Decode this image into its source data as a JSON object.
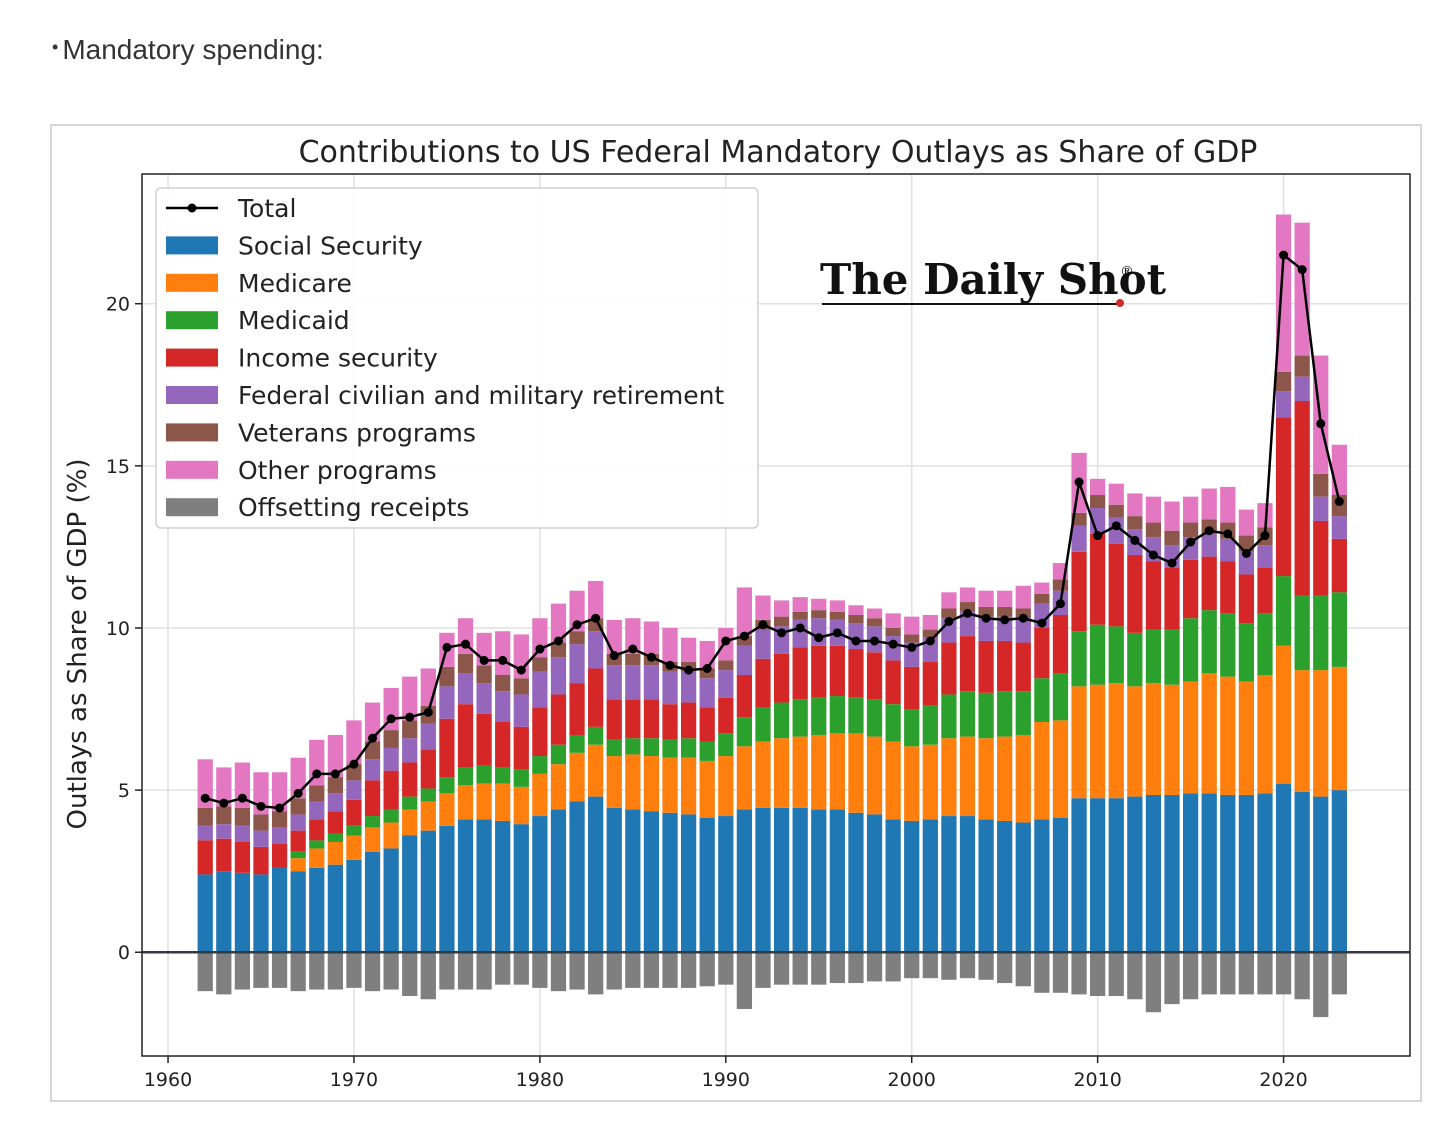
{
  "intro": {
    "bullet": "•",
    "text": "Mandatory spending:"
  },
  "logo": {
    "text": "The Daily Shot",
    "mark": "®"
  },
  "chart_data": {
    "type": "bar",
    "title": "Contributions to US Federal Mandatory Outlays as Share of GDP",
    "xlabel": "",
    "ylabel": "Outlays as Share of GDP (%)",
    "xlim": [
      1958.6,
      2026.8
    ],
    "ylim": [
      -3.2,
      24
    ],
    "xticks": [
      1960,
      1970,
      1980,
      1990,
      2000,
      2010,
      2020
    ],
    "yticks": [
      0,
      5,
      10,
      15,
      20
    ],
    "grid": true,
    "legend_position": "top-left",
    "stacked": true,
    "colors": {
      "Total": "#000000",
      "Social Security": "#1f77b4",
      "Medicare": "#ff7f0e",
      "Medicaid": "#2ca02c",
      "Income security": "#d62728",
      "Federal civilian and military retirement": "#9467bd",
      "Veterans programs": "#8c564b",
      "Other programs": "#e377c2",
      "Offsetting receipts": "#7f7f7f"
    },
    "legend": [
      "Total",
      "Social Security",
      "Medicare",
      "Medicaid",
      "Income security",
      "Federal civilian and military retirement",
      "Veterans programs",
      "Other programs",
      "Offsetting receipts"
    ],
    "years": [
      1962,
      1963,
      1964,
      1965,
      1966,
      1967,
      1968,
      1969,
      1970,
      1971,
      1972,
      1973,
      1974,
      1975,
      1976,
      1977,
      1978,
      1979,
      1980,
      1981,
      1982,
      1983,
      1984,
      1985,
      1986,
      1987,
      1988,
      1989,
      1990,
      1991,
      1992,
      1993,
      1994,
      1995,
      1996,
      1997,
      1998,
      1999,
      2000,
      2001,
      2002,
      2003,
      2004,
      2005,
      2006,
      2007,
      2008,
      2009,
      2010,
      2011,
      2012,
      2013,
      2014,
      2015,
      2016,
      2017,
      2018,
      2019,
      2020,
      2021,
      2022,
      2023
    ],
    "series": [
      {
        "name": "Social Security",
        "values": [
          2.4,
          2.5,
          2.45,
          2.4,
          2.6,
          2.5,
          2.6,
          2.7,
          2.85,
          3.1,
          3.2,
          3.6,
          3.75,
          3.9,
          4.1,
          4.1,
          4.05,
          3.95,
          4.2,
          4.4,
          4.65,
          4.8,
          4.45,
          4.4,
          4.35,
          4.3,
          4.25,
          4.15,
          4.2,
          4.4,
          4.45,
          4.45,
          4.45,
          4.4,
          4.4,
          4.3,
          4.25,
          4.1,
          4.05,
          4.1,
          4.2,
          4.2,
          4.1,
          4.05,
          4.0,
          4.1,
          4.15,
          4.75,
          4.75,
          4.75,
          4.8,
          4.85,
          4.85,
          4.9,
          4.9,
          4.85,
          4.85,
          4.9,
          5.2,
          4.95,
          4.8,
          5.0
        ]
      },
      {
        "name": "Medicare",
        "values": [
          0,
          0,
          0,
          0,
          0,
          0.4,
          0.6,
          0.7,
          0.75,
          0.75,
          0.8,
          0.8,
          0.9,
          1.0,
          1.05,
          1.1,
          1.15,
          1.15,
          1.3,
          1.4,
          1.5,
          1.6,
          1.6,
          1.7,
          1.7,
          1.7,
          1.75,
          1.75,
          1.85,
          1.95,
          2.05,
          2.15,
          2.2,
          2.3,
          2.35,
          2.45,
          2.4,
          2.4,
          2.3,
          2.3,
          2.4,
          2.45,
          2.5,
          2.6,
          2.7,
          3.0,
          3.0,
          3.45,
          3.5,
          3.55,
          3.4,
          3.45,
          3.4,
          3.45,
          3.7,
          3.65,
          3.5,
          3.65,
          4.25,
          3.75,
          3.9,
          3.8
        ]
      },
      {
        "name": "Medicaid",
        "values": [
          0,
          0,
          0,
          0,
          0,
          0.2,
          0.25,
          0.25,
          0.3,
          0.35,
          0.4,
          0.4,
          0.4,
          0.5,
          0.55,
          0.55,
          0.5,
          0.55,
          0.55,
          0.6,
          0.55,
          0.55,
          0.5,
          0.5,
          0.55,
          0.55,
          0.6,
          0.6,
          0.7,
          0.9,
          1.05,
          1.1,
          1.15,
          1.15,
          1.15,
          1.1,
          1.15,
          1.15,
          1.15,
          1.2,
          1.35,
          1.4,
          1.4,
          1.4,
          1.35,
          1.35,
          1.45,
          1.7,
          1.85,
          1.75,
          1.65,
          1.65,
          1.7,
          1.95,
          1.95,
          1.95,
          1.8,
          1.9,
          2.15,
          2.3,
          2.3,
          2.3
        ]
      },
      {
        "name": "Income security",
        "values": [
          1.05,
          1.0,
          0.95,
          0.85,
          0.75,
          0.65,
          0.65,
          0.7,
          0.8,
          1.1,
          1.2,
          1.05,
          1.2,
          1.8,
          1.95,
          1.6,
          1.4,
          1.3,
          1.5,
          1.55,
          1.6,
          1.8,
          1.25,
          1.2,
          1.2,
          1.1,
          1.1,
          1.05,
          1.1,
          1.3,
          1.5,
          1.5,
          1.6,
          1.6,
          1.55,
          1.5,
          1.45,
          1.35,
          1.3,
          1.35,
          1.6,
          1.7,
          1.6,
          1.55,
          1.5,
          1.55,
          1.8,
          2.45,
          2.8,
          2.55,
          2.4,
          2.1,
          1.9,
          1.8,
          1.65,
          1.6,
          1.5,
          1.4,
          4.9,
          6.0,
          2.3,
          1.65
        ]
      },
      {
        "name": "Federal civilian and military retirement",
        "values": [
          0.45,
          0.45,
          0.5,
          0.5,
          0.5,
          0.5,
          0.55,
          0.55,
          0.6,
          0.65,
          0.7,
          0.75,
          0.8,
          1.0,
          0.95,
          0.95,
          0.95,
          1.0,
          1.1,
          1.15,
          1.2,
          1.15,
          1.05,
          1.05,
          1.05,
          1.0,
          0.95,
          0.9,
          0.85,
          0.9,
          0.9,
          0.85,
          0.85,
          0.85,
          0.8,
          0.8,
          0.8,
          0.75,
          0.75,
          0.75,
          0.75,
          0.75,
          0.75,
          0.75,
          0.75,
          0.75,
          0.75,
          0.8,
          0.8,
          0.8,
          0.8,
          0.75,
          0.7,
          0.7,
          0.7,
          0.7,
          0.7,
          0.7,
          0.8,
          0.75,
          0.75,
          0.7
        ]
      },
      {
        "name": "Veterans programs",
        "values": [
          0.55,
          0.55,
          0.55,
          0.5,
          0.5,
          0.5,
          0.5,
          0.5,
          0.5,
          0.55,
          0.55,
          0.55,
          0.55,
          0.6,
          0.6,
          0.55,
          0.5,
          0.5,
          0.45,
          0.45,
          0.4,
          0.4,
          0.35,
          0.35,
          0.35,
          0.3,
          0.3,
          0.3,
          0.3,
          0.3,
          0.3,
          0.3,
          0.25,
          0.25,
          0.25,
          0.25,
          0.25,
          0.25,
          0.25,
          0.25,
          0.3,
          0.3,
          0.3,
          0.3,
          0.3,
          0.3,
          0.35,
          0.4,
          0.4,
          0.4,
          0.4,
          0.45,
          0.45,
          0.45,
          0.45,
          0.5,
          0.5,
          0.55,
          0.6,
          0.65,
          0.7,
          0.65
        ]
      },
      {
        "name": "Other programs",
        "values": [
          1.5,
          1.2,
          1.4,
          1.3,
          1.2,
          1.25,
          1.4,
          1.3,
          1.35,
          1.2,
          1.3,
          1.35,
          1.15,
          1.05,
          1.1,
          1.0,
          1.35,
          1.35,
          1.2,
          1.2,
          1.25,
          1.15,
          1.05,
          1.1,
          1.0,
          1.05,
          0.75,
          0.85,
          1.0,
          1.5,
          0.75,
          0.5,
          0.45,
          0.35,
          0.35,
          0.3,
          0.3,
          0.45,
          0.55,
          0.45,
          0.5,
          0.45,
          0.5,
          0.5,
          0.7,
          0.35,
          0.5,
          1.85,
          0.5,
          0.65,
          0.7,
          0.8,
          0.9,
          0.8,
          0.95,
          1.1,
          0.8,
          0.75,
          4.85,
          4.1,
          3.65,
          1.55
        ]
      },
      {
        "name": "Offsetting receipts",
        "values": [
          -1.2,
          -1.3,
          -1.15,
          -1.1,
          -1.1,
          -1.2,
          -1.15,
          -1.15,
          -1.1,
          -1.2,
          -1.15,
          -1.35,
          -1.45,
          -1.15,
          -1.15,
          -1.15,
          -1.0,
          -1.0,
          -1.1,
          -1.2,
          -1.15,
          -1.3,
          -1.15,
          -1.1,
          -1.1,
          -1.1,
          -1.1,
          -1.05,
          -1.0,
          -1.75,
          -1.1,
          -1.0,
          -1.0,
          -1.0,
          -0.95,
          -0.95,
          -0.9,
          -0.9,
          -0.8,
          -0.8,
          -0.85,
          -0.8,
          -0.85,
          -0.95,
          -1.05,
          -1.25,
          -1.25,
          -1.3,
          -1.35,
          -1.35,
          -1.45,
          -1.85,
          -1.6,
          -1.45,
          -1.3,
          -1.3,
          -1.3,
          -1.3,
          -1.3,
          -1.45,
          -2.0,
          -1.3
        ]
      },
      {
        "name": "Total",
        "type": "line",
        "values": [
          4.75,
          4.6,
          4.75,
          4.5,
          4.45,
          4.9,
          5.5,
          5.5,
          5.8,
          6.6,
          7.2,
          7.25,
          7.4,
          9.4,
          9.5,
          9.0,
          9.0,
          8.7,
          9.35,
          9.6,
          10.1,
          10.3,
          9.15,
          9.35,
          9.1,
          8.85,
          8.7,
          8.75,
          9.6,
          9.75,
          10.1,
          9.85,
          10.0,
          9.7,
          9.85,
          9.6,
          9.6,
          9.5,
          9.4,
          9.6,
          10.2,
          10.45,
          10.3,
          10.25,
          10.3,
          10.15,
          10.75,
          14.5,
          12.85,
          13.15,
          12.7,
          12.25,
          12.0,
          12.65,
          13.0,
          12.9,
          12.3,
          12.85,
          21.5,
          21.05,
          16.3,
          13.9
        ]
      }
    ]
  }
}
